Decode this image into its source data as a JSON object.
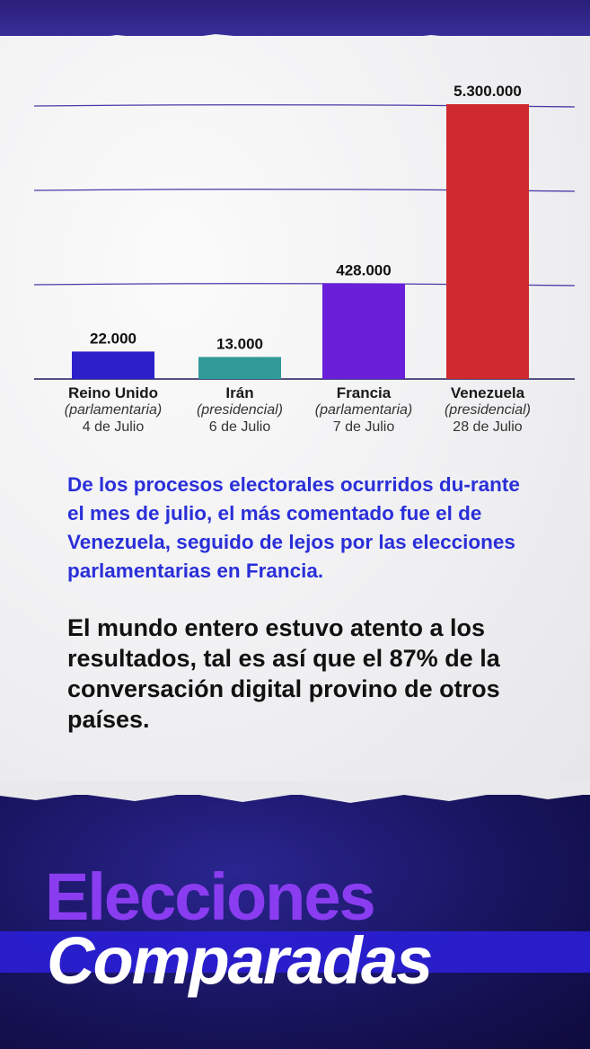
{
  "colors": {
    "gridline": "#4a3aa8",
    "axis": "#1c1a5c",
    "bar_reino_unido": "#2d20c8",
    "bar_iran": "#2f9a98",
    "bar_francia": "#6a1fd9",
    "bar_venezuela": "#cf2a2e",
    "paragraph1": "#2a2fd8",
    "title_line1": "#8a3df0",
    "title_line2": "#ffffff"
  },
  "chart_data": {
    "type": "bar",
    "categories": [
      "Reino Unido",
      "Irán",
      "Francia",
      "Venezuela"
    ],
    "subtitles": [
      "(parlamentaria)",
      "(presidencial)",
      "(parlamentaria)",
      "(presidencial)"
    ],
    "dates": [
      "4 de Julio",
      "6 de Julio",
      "7 de Julio",
      "28 de Julio"
    ],
    "values": [
      22000,
      13000,
      428000,
      5300000
    ],
    "value_labels": [
      "22.000",
      "13.000",
      "428.000",
      "5.300.000"
    ],
    "y_scale": "nonlinear",
    "gridlines": 4,
    "legend": "none"
  },
  "texts": {
    "paragraph1": "De los procesos electorales ocurridos du-rante el mes de julio, el más comentado fue el de Venezuela, seguido de lejos por las elecciones parlamentarias en Francia.",
    "paragraph2": "El mundo entero estuvo atento a los resultados, tal es así que el 87% de la conversación digital provino de otros países.",
    "title_line1": "Elecciones",
    "title_line2": "Comparadas"
  }
}
